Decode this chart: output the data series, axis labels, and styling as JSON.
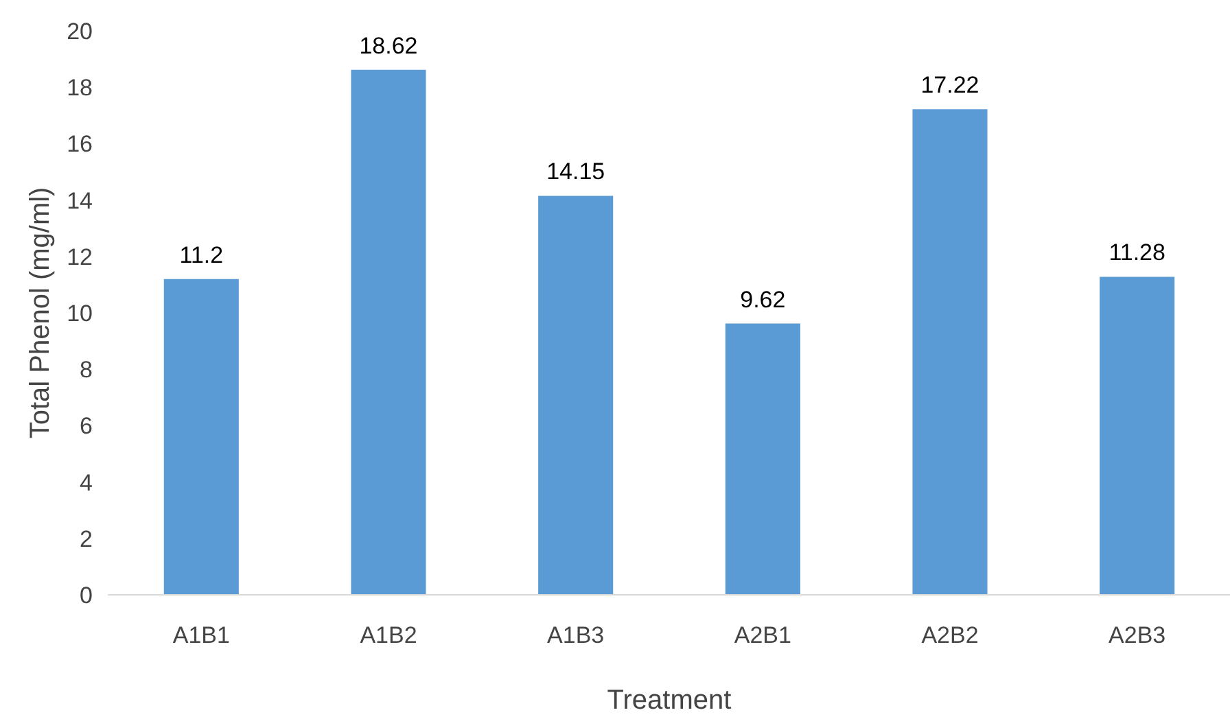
{
  "chart_data": {
    "type": "bar",
    "xlabel": "Treatment",
    "ylabel": "Total Phenol (mg/ml)",
    "categories": [
      "A1B1",
      "A1B2",
      "A1B3",
      "A2B1",
      "A2B2",
      "A2B3"
    ],
    "values": [
      11.2,
      18.62,
      14.15,
      9.62,
      17.22,
      11.28
    ],
    "color": "#5b9bd5",
    "ylim": [
      0,
      20
    ],
    "yticks": [
      0,
      2,
      4,
      6,
      8,
      10,
      12,
      14,
      16,
      18,
      20
    ],
    "data_labels": true,
    "grid": false
  }
}
